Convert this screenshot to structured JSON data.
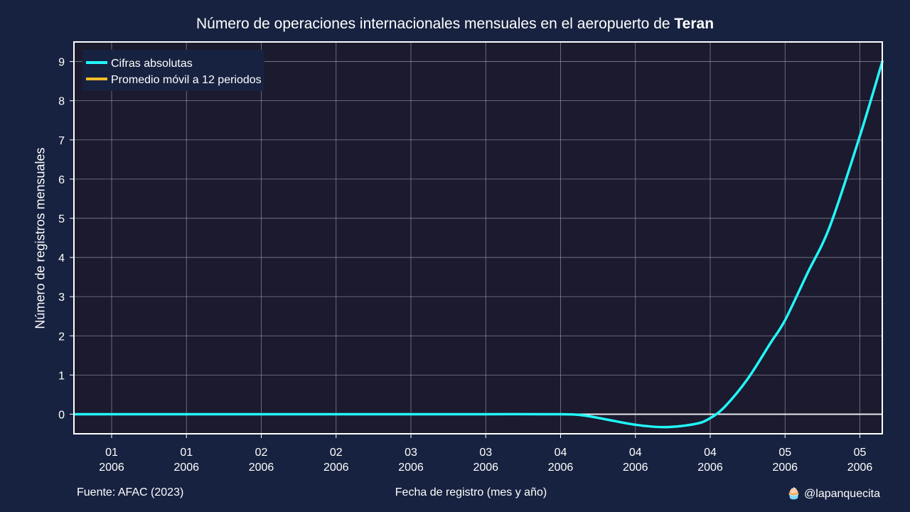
{
  "title": {
    "prefix": "Número de operaciones internacionales mensuales en el aeropuerto de ",
    "emphasis": "Teran"
  },
  "footer": {
    "source": "Fuente: AFAC (2023)",
    "credit_icon": "cupcake-icon",
    "credit_emoji": "🧁",
    "credit": "@lapanquecita"
  },
  "colors": {
    "background": "#172240",
    "plot_background": "#1b1a2e",
    "absolute": "#22f7fb",
    "moving_average": "#f8bc27",
    "grid": "#9a9aaa"
  },
  "chart_data": {
    "type": "line",
    "title": "Número de operaciones internacionales mensuales en el aeropuerto de Teran",
    "xlabel": "Fecha de registro (mes y año)",
    "ylabel": "Número de registros mensuales",
    "ylim": [
      -0.5,
      9.5
    ],
    "y_ticks": [
      0,
      1,
      2,
      3,
      4,
      5,
      6,
      7,
      8,
      9
    ],
    "x_tick_labels": [
      [
        "01",
        "2006"
      ],
      [
        "01",
        "2006"
      ],
      [
        "02",
        "2006"
      ],
      [
        "02",
        "2006"
      ],
      [
        "03",
        "2006"
      ],
      [
        "03",
        "2006"
      ],
      [
        "04",
        "2006"
      ],
      [
        "04",
        "2006"
      ],
      [
        "04",
        "2006"
      ],
      [
        "05",
        "2006"
      ],
      [
        "05",
        "2006"
      ]
    ],
    "grid": true,
    "legend_position": "top-left",
    "series": [
      {
        "name": "Cifras absolutas",
        "color": "#22f7fb",
        "x_index": [
          -0.5,
          0,
          1,
          2,
          3,
          4,
          5,
          6,
          6.3,
          6.6,
          7,
          7.4,
          7.8,
          8,
          8.2,
          8.5,
          8.8,
          9,
          9.3,
          9.6,
          10,
          10.3
        ],
        "values": [
          0,
          0,
          0,
          0,
          0,
          0,
          0,
          0,
          -0.03,
          -0.13,
          -0.27,
          -0.33,
          -0.25,
          -0.1,
          0.2,
          0.9,
          1.8,
          2.4,
          3.6,
          4.8,
          7.1,
          9.0
        ]
      },
      {
        "name": "Promedio móvil a 12 periodos",
        "color": "#f8bc27",
        "x_index": [],
        "values": []
      }
    ],
    "reference_line": {
      "y": 0,
      "color": "#e8e8e8"
    }
  }
}
